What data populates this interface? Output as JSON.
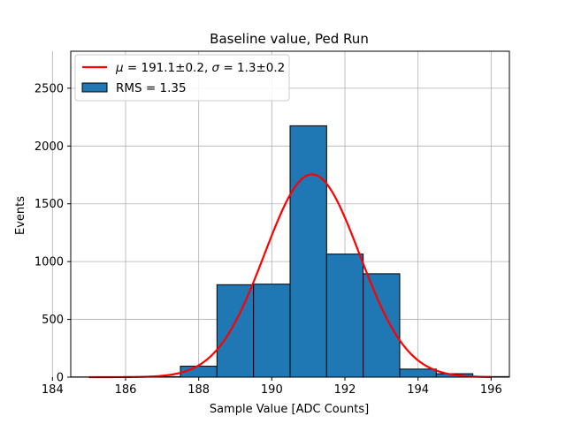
{
  "chart_data": {
    "type": "bar",
    "title": "Baseline value, Ped Run",
    "xlabel": "Sample Value [ADC Counts]",
    "ylabel": "Events",
    "xlim": [
      184.5,
      196.5
    ],
    "ylim": [
      0,
      2820
    ],
    "x_ticks": [
      184,
      186,
      188,
      190,
      192,
      194,
      196
    ],
    "y_ticks": [
      0,
      500,
      1000,
      1500,
      2000,
      2500
    ],
    "grid": true,
    "legend_position": "top-left",
    "histogram": {
      "name": "RMS = 1.35",
      "color": "#1f77b4",
      "bins": [
        {
          "left": 184.5,
          "right": 185.5,
          "count": 2
        },
        {
          "left": 185.5,
          "right": 186.5,
          "count": 3
        },
        {
          "left": 186.5,
          "right": 187.5,
          "count": 5
        },
        {
          "left": 187.5,
          "right": 188.5,
          "count": 95
        },
        {
          "left": 188.5,
          "right": 189.5,
          "count": 800
        },
        {
          "left": 189.5,
          "right": 190.5,
          "count": 805
        },
        {
          "left": 190.5,
          "right": 191.5,
          "count": 2175
        },
        {
          "left": 191.5,
          "right": 192.5,
          "count": 1065
        },
        {
          "left": 192.5,
          "right": 193.5,
          "count": 895
        },
        {
          "left": 193.5,
          "right": 194.5,
          "count": 70
        },
        {
          "left": 194.5,
          "right": 195.5,
          "count": 30
        },
        {
          "left": 195.5,
          "right": 196.5,
          "count": 5
        }
      ]
    },
    "fit": {
      "type": "gaussian",
      "color": "#ff0000",
      "label_mu_symbol": "μ",
      "label_mu_value": "191.1±0.2",
      "label_sigma_symbol": "σ",
      "label_sigma_value": "1.3±0.2",
      "mu": 191.1,
      "sigma": 1.3,
      "amplitude": 1755,
      "x_range": [
        185,
        196
      ]
    }
  }
}
